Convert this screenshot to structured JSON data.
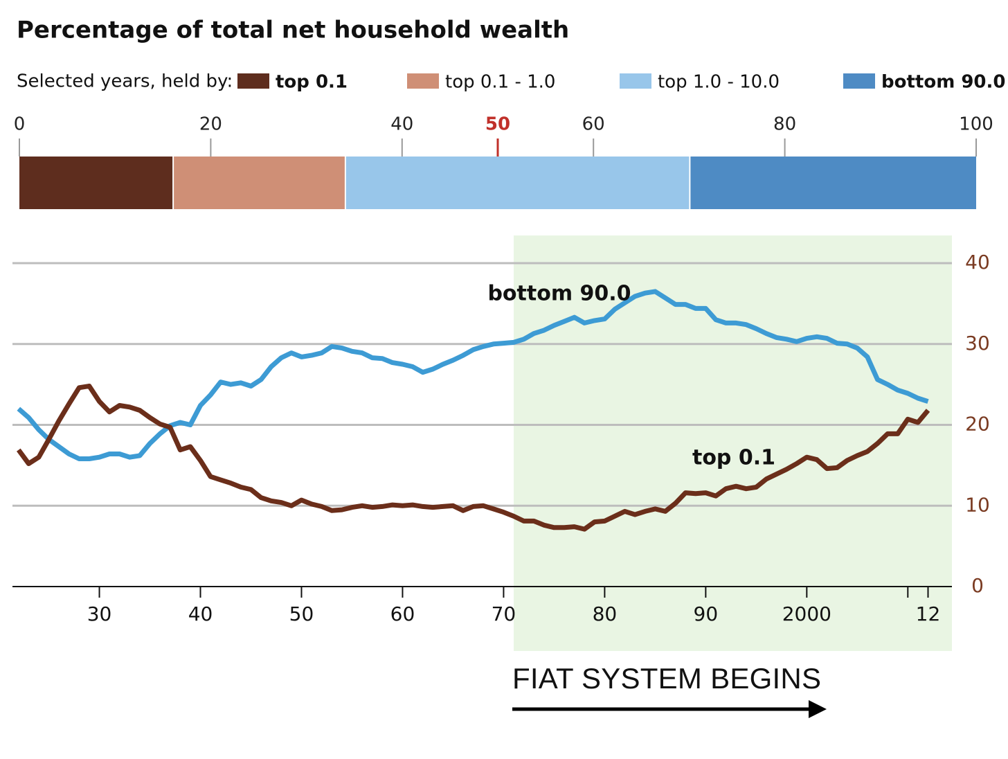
{
  "chart_data": [
    {
      "type": "stacked_bar",
      "title": "Percentage of total net household wealth",
      "subtitle": "Selected years, held by:",
      "series": [
        {
          "name": "top 0.1",
          "color": "#5e2d1e",
          "values": [
            16
          ]
        },
        {
          "name": "top 0.1 - 1.0",
          "color": "#cf8f76",
          "values": [
            18
          ]
        },
        {
          "name": "top 1.0 - 10.0",
          "color": "#98c6ea",
          "values": [
            36
          ]
        },
        {
          "name": "bottom 90.0",
          "color": "#4e8bc4",
          "values": [
            30
          ]
        }
      ],
      "xlim": [
        0,
        100
      ],
      "xticks": [
        0,
        20,
        40,
        50,
        60,
        80,
        100
      ],
      "xtick_colors": [
        "#222",
        "#222",
        "#222",
        "#c0302a",
        "#222",
        "#222",
        "#222"
      ]
    },
    {
      "type": "line",
      "x": [
        1922,
        1923,
        1924,
        1925,
        1926,
        1927,
        1928,
        1929,
        1930,
        1931,
        1932,
        1933,
        1934,
        1935,
        1936,
        1937,
        1938,
        1939,
        1940,
        1941,
        1942,
        1943,
        1944,
        1945,
        1946,
        1947,
        1948,
        1949,
        1950,
        1951,
        1952,
        1953,
        1954,
        1955,
        1956,
        1957,
        1958,
        1959,
        1960,
        1961,
        1962,
        1963,
        1964,
        1965,
        1966,
        1967,
        1968,
        1969,
        1970,
        1971,
        1972,
        1973,
        1974,
        1975,
        1976,
        1977,
        1978,
        1979,
        1980,
        1981,
        1982,
        1983,
        1984,
        1985,
        1986,
        1987,
        1988,
        1989,
        1990,
        1991,
        1992,
        1993,
        1994,
        1995,
        1996,
        1997,
        1998,
        1999,
        2000,
        2001,
        2002,
        2003,
        2004,
        2005,
        2006,
        2007,
        2008,
        2009,
        2010,
        2011,
        2012
      ],
      "series": [
        {
          "name": "bottom 90.0",
          "color": "#3d9bd4",
          "values": [
            22.0,
            20.9,
            19.4,
            18.2,
            17.3,
            16.4,
            15.8,
            15.8,
            16.0,
            16.4,
            16.4,
            16.0,
            16.2,
            17.7,
            18.9,
            19.9,
            20.3,
            20.0,
            22.4,
            23.7,
            25.3,
            25.0,
            25.2,
            24.8,
            25.6,
            27.2,
            28.3,
            28.9,
            28.4,
            28.6,
            28.9,
            29.7,
            29.5,
            29.1,
            28.9,
            28.3,
            28.2,
            27.7,
            27.5,
            27.2,
            26.5,
            26.9,
            27.5,
            28.0,
            28.6,
            29.3,
            29.7,
            30.0,
            30.1,
            30.2,
            30.6,
            31.3,
            31.7,
            32.3,
            32.8,
            33.3,
            32.6,
            32.9,
            33.1,
            34.3,
            35.1,
            35.9,
            36.3,
            36.5,
            35.7,
            34.9,
            34.9,
            34.4,
            34.4,
            33.0,
            32.6,
            32.6,
            32.4,
            31.9,
            31.3,
            30.8,
            30.6,
            30.3,
            30.7,
            30.9,
            30.7,
            30.1,
            30.0,
            29.5,
            28.4,
            25.6,
            25.0,
            24.3,
            23.9,
            23.3,
            22.9
          ]
        },
        {
          "name": "top 0.1",
          "color": "#6b2e1a",
          "values": [
            16.9,
            15.2,
            16.0,
            18.2,
            20.5,
            22.6,
            24.6,
            24.8,
            22.9,
            21.6,
            22.4,
            22.2,
            21.8,
            20.9,
            20.1,
            19.7,
            16.9,
            17.3,
            15.6,
            13.6,
            13.2,
            12.8,
            12.3,
            12.0,
            11.0,
            10.6,
            10.4,
            10.0,
            10.7,
            10.2,
            9.9,
            9.4,
            9.5,
            9.8,
            10.0,
            9.8,
            9.9,
            10.1,
            10.0,
            10.1,
            9.9,
            9.8,
            9.9,
            10.0,
            9.4,
            9.9,
            10.0,
            9.6,
            9.2,
            8.7,
            8.1,
            8.1,
            7.6,
            7.3,
            7.3,
            7.4,
            7.1,
            8.0,
            8.1,
            8.7,
            9.3,
            8.9,
            9.3,
            9.6,
            9.3,
            10.3,
            11.6,
            11.5,
            11.6,
            11.2,
            12.1,
            12.4,
            12.1,
            12.3,
            13.3,
            13.9,
            14.5,
            15.2,
            16.0,
            15.7,
            14.6,
            14.7,
            15.6,
            16.2,
            16.7,
            17.7,
            18.9,
            18.9,
            20.7,
            20.3,
            21.8
          ]
        }
      ],
      "xlim": [
        1921.4,
        2014.5
      ],
      "xticks": [
        {
          "value": 1930,
          "label": "30"
        },
        {
          "value": 1940,
          "label": "40"
        },
        {
          "value": 1950,
          "label": "50"
        },
        {
          "value": 1960,
          "label": "60"
        },
        {
          "value": 1970,
          "label": "70"
        },
        {
          "value": 1980,
          "label": "80"
        },
        {
          "value": 1990,
          "label": "90"
        },
        2000,
        {
          "value": 2012,
          "label": "12"
        }
      ],
      "minor_xticks": [
        2010
      ],
      "ylim": [
        0,
        43
      ],
      "yticks": [
        0,
        10,
        20,
        30,
        40
      ],
      "yaxis_side": "right",
      "ytick_color": "#7a3b22",
      "grid": true,
      "shade": {
        "start": 1971,
        "color": "#e9f5e3"
      },
      "annotation": "FIAT SYSTEM BEGINS"
    }
  ]
}
